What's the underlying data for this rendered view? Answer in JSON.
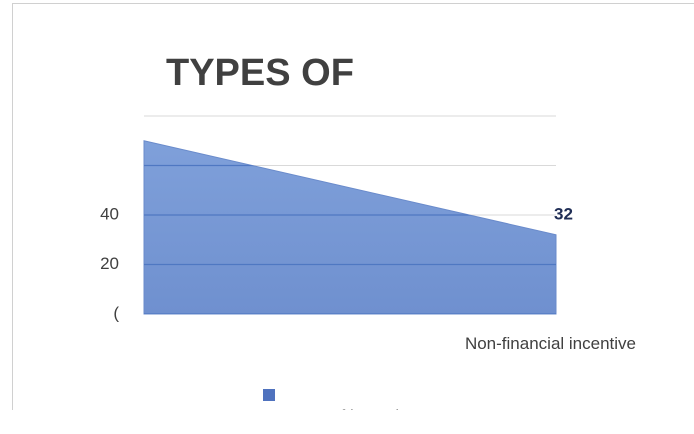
{
  "chart_data": {
    "type": "area",
    "title": "TYPES OF",
    "categories": [
      null,
      "Non-financial incentive"
    ],
    "series": [
      {
        "name": "Types of incentives",
        "color": "#7294d4",
        "values": [
          70,
          32
        ],
        "value_labels": [
          null,
          "32"
        ]
      }
    ],
    "ylim": [
      0,
      80
    ],
    "yticks": [
      {
        "value": 0,
        "label": "("
      },
      20,
      40
    ],
    "ygrid": [
      0,
      20,
      40,
      60,
      80
    ],
    "grid": true,
    "legend": "bottom"
  }
}
